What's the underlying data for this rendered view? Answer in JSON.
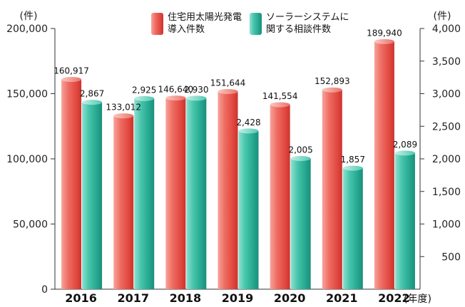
{
  "chart_data": {
    "type": "bar",
    "categories": [
      "2016",
      "2017",
      "2018",
      "2019",
      "2020",
      "2021",
      "2022"
    ],
    "x_unit_suffix": "(年度)",
    "series": [
      {
        "name": "住宅用太陽光発電\n導入件数",
        "axis": "left",
        "values": [
          160917,
          133012,
          146640,
          151644,
          141554,
          152893,
          189940
        ],
        "labels": [
          "160,917",
          "133,012",
          "146,640",
          "151,644",
          "141,554",
          "152,893",
          "189,940"
        ],
        "color": "#e8625a"
      },
      {
        "name": "ソーラーシステムに\n関する相談件数",
        "axis": "right",
        "values": [
          2867,
          2925,
          2930,
          2428,
          2005,
          1857,
          2089
        ],
        "labels": [
          "2,867",
          "2,925",
          "2,930",
          "2,428",
          "2,005",
          "1,857",
          "2,089"
        ],
        "color": "#3dbfa7"
      }
    ],
    "y_left": {
      "unit": "(件)",
      "ylim": [
        0,
        200000
      ],
      "ticks": [
        0,
        50000,
        100000,
        150000,
        200000
      ],
      "tick_labels": [
        "0",
        "50,000",
        "100,000",
        "150,000",
        "200,000"
      ]
    },
    "y_right": {
      "unit": "(件)",
      "ylim": [
        0,
        4000
      ],
      "ticks": [
        500,
        1000,
        1500,
        2000,
        2500,
        3000,
        3500,
        4000
      ],
      "tick_labels": [
        "500",
        "1,000",
        "1,500",
        "2,000",
        "2,500",
        "3,000",
        "3,500",
        "4,000"
      ]
    },
    "legend_position": "top-center",
    "grid": false
  }
}
